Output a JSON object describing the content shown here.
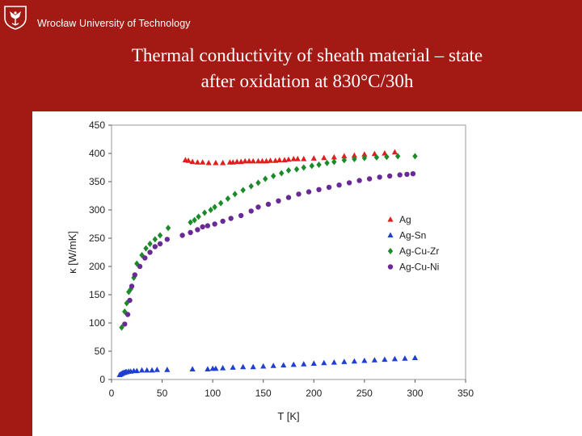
{
  "header": {
    "university": "Wrocław University of Technology",
    "logo": "eagle-crest-icon"
  },
  "slide": {
    "title_line1": "Thermal conductivity of sheath material – state",
    "title_line2": "after oxidation at 830°C/30h"
  },
  "colors": {
    "brand_red": "#a31a14",
    "ag": "#e21d1d",
    "ag_sn": "#1f3fd2",
    "ag_cu_zr": "#1d8a2a",
    "ag_cu_ni": "#6a2a96"
  },
  "chart_data": {
    "type": "scatter",
    "title": "",
    "xlabel": "T [K]",
    "ylabel": "κ [W/mK]",
    "xlim": [
      0,
      350
    ],
    "ylim": [
      0,
      450
    ],
    "xticks": [
      0,
      50,
      100,
      150,
      200,
      250,
      300,
      350
    ],
    "yticks": [
      0,
      50,
      100,
      150,
      200,
      250,
      300,
      350,
      400,
      450
    ],
    "legend_position": "right-middle",
    "series": [
      {
        "name": "Ag",
        "marker": "triangle",
        "color": "#e21d1d",
        "x": [
          73,
          76,
          80,
          85,
          90,
          96,
          103,
          110,
          117,
          120,
          124,
          128,
          132,
          136,
          140,
          145,
          149,
          153,
          157,
          162,
          166,
          171,
          175,
          180,
          184,
          190,
          200,
          210,
          220,
          230,
          240,
          250,
          260,
          270,
          280
        ],
        "y": [
          388,
          387,
          385,
          384,
          384,
          383,
          383,
          383,
          384,
          384,
          385,
          385,
          386,
          386,
          386,
          386,
          386,
          386,
          387,
          387,
          388,
          388,
          389,
          390,
          390,
          390,
          391,
          392,
          393,
          395,
          396,
          398,
          399,
          400,
          402
        ]
      },
      {
        "name": "Ag-Sn",
        "marker": "triangle",
        "color": "#1f3fd2",
        "x": [
          8,
          9,
          10,
          11,
          12,
          13,
          14,
          15,
          17,
          19,
          22,
          25,
          30,
          35,
          40,
          45,
          55,
          80,
          95,
          100,
          103,
          110,
          120,
          130,
          140,
          150,
          160,
          170,
          180,
          190,
          200,
          210,
          220,
          230,
          240,
          250,
          260,
          270,
          280,
          290,
          300
        ],
        "y": [
          8,
          9,
          10,
          11,
          12,
          12,
          13,
          13,
          14,
          14,
          15,
          15,
          16,
          16,
          16,
          17,
          17,
          18,
          18,
          19,
          19,
          20,
          21,
          22,
          22,
          23,
          24,
          25,
          26,
          27,
          28,
          29,
          30,
          31,
          32,
          33,
          34,
          35,
          36,
          37,
          38
        ]
      },
      {
        "name": "Ag-Cu-Zr",
        "marker": "diamond",
        "color": "#1d8a2a",
        "x": [
          10,
          13,
          15,
          17,
          19,
          22,
          25,
          30,
          34,
          38,
          43,
          48,
          56,
          78,
          82,
          86,
          92,
          98,
          102,
          108,
          115,
          122,
          130,
          138,
          145,
          152,
          160,
          168,
          175,
          183,
          190,
          198,
          205,
          213,
          220,
          230,
          240,
          250,
          262,
          272,
          283,
          300
        ],
        "y": [
          92,
          120,
          135,
          155,
          160,
          180,
          205,
          220,
          232,
          240,
          248,
          255,
          268,
          278,
          282,
          288,
          295,
          300,
          305,
          312,
          320,
          328,
          335,
          342,
          348,
          355,
          360,
          365,
          370,
          372,
          375,
          378,
          380,
          383,
          385,
          388,
          390,
          392,
          393,
          394,
          395,
          395
        ]
      },
      {
        "name": "Ag-Cu-Ni",
        "marker": "circle",
        "color": "#6a2a96",
        "x": [
          13,
          16,
          18,
          20,
          23,
          28,
          33,
          38,
          43,
          48,
          55,
          70,
          78,
          85,
          90,
          95,
          102,
          110,
          118,
          128,
          138,
          145,
          155,
          165,
          175,
          185,
          195,
          205,
          215,
          225,
          235,
          245,
          255,
          265,
          275,
          285,
          292,
          298
        ],
        "y": [
          98,
          115,
          140,
          165,
          185,
          200,
          215,
          225,
          235,
          240,
          248,
          255,
          260,
          265,
          270,
          272,
          275,
          280,
          285,
          290,
          298,
          305,
          310,
          316,
          322,
          328,
          332,
          336,
          340,
          344,
          348,
          352,
          355,
          358,
          360,
          362,
          363,
          364
        ]
      }
    ]
  }
}
